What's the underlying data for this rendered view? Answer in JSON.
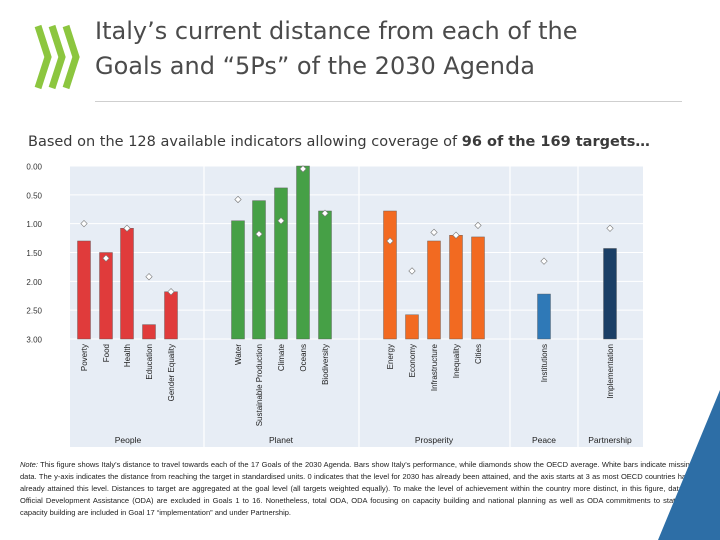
{
  "header": {
    "title_line1": "Italy’s current distance from each of the",
    "title_line2": "Goals and “5Ps” of the 2030 Agenda"
  },
  "subtitle": {
    "part1": "Based on the 128 available indicators allowing coverage of ",
    "bold": "96 of the 169 targets…"
  },
  "colors": {
    "people": "#e03b3b",
    "planet": "#46a046",
    "prosperity": "#f26a21",
    "peace": "#2f79b7",
    "partnership": "#1b3f66",
    "logo": "#8cc63f",
    "corner": "#2d6ea6"
  },
  "chart_data": {
    "type": "bar",
    "categories": [
      "Poverty",
      "Food",
      "Health",
      "Education",
      "Gender Equality",
      "Water",
      "Sustainable Production",
      "Climate",
      "Oceans",
      "Biodiversity",
      "Energy",
      "Economy",
      "Infrastructure",
      "Inequality",
      "Cities",
      "Institutions",
      "Implementation"
    ],
    "groups": [
      {
        "name": "People",
        "categories": [
          "Poverty",
          "Food",
          "Health",
          "Education",
          "Gender Equality"
        ],
        "color": "#e03b3b"
      },
      {
        "name": "Planet",
        "categories": [
          "Water",
          "Sustainable Production",
          "Climate",
          "Oceans",
          "Biodiversity"
        ],
        "color": "#46a046"
      },
      {
        "name": "Prosperity",
        "categories": [
          "Energy",
          "Economy",
          "Infrastructure",
          "Inequality",
          "Cities"
        ],
        "color": "#f26a21"
      },
      {
        "name": "Peace",
        "categories": [
          "Institutions"
        ],
        "color": "#2f79b7"
      },
      {
        "name": "Partnership",
        "categories": [
          "Implementation"
        ],
        "color": "#1b3f66"
      }
    ],
    "series": [
      {
        "name": "Italy",
        "type": "bar",
        "values": [
          1.3,
          1.5,
          1.08,
          2.75,
          2.18,
          0.95,
          0.6,
          0.38,
          0.0,
          0.78,
          0.78,
          2.58,
          1.3,
          1.2,
          1.23,
          2.22,
          1.43
        ]
      },
      {
        "name": "OECD average",
        "type": "diamond",
        "values": [
          1.0,
          1.6,
          1.08,
          1.92,
          2.18,
          0.58,
          1.18,
          0.95,
          0.05,
          0.82,
          1.3,
          1.82,
          1.15,
          1.2,
          1.03,
          1.65,
          1.08
        ]
      }
    ],
    "y_ticks": [
      "0.00",
      "0.50",
      "1.00",
      "1.50",
      "2.00",
      "2.50",
      "3.00"
    ],
    "ylim": [
      0,
      3
    ],
    "y_inverted": true,
    "grid": true,
    "xlabel": "",
    "ylabel": ""
  },
  "note": {
    "label": "Note:",
    "text": " This figure shows Italy's distance to travel towards each of the 17 Goals of the 2030 Agenda. Bars show Italy's performance, while diamonds show the OECD average. White bars indicate missing data. The y-axis indicates the distance from reaching the target in standardised units. 0 indicates that the level for 2030 has already been attained, and the axis starts at 3 as most OECD countries have already attained this level. Distances to target are aggregated at the goal level (all targets weighted equally). To make the level of achievement within the country more distinct, in this figure, data on Official Development Assistance (ODA) are excluded in Goals 1 to 16. Nonetheless, total ODA, ODA focusing on capacity building and national planning as well as ODA commitments to statistical capacity building are included in Goal 17 “implementation” and under Partnership."
  }
}
